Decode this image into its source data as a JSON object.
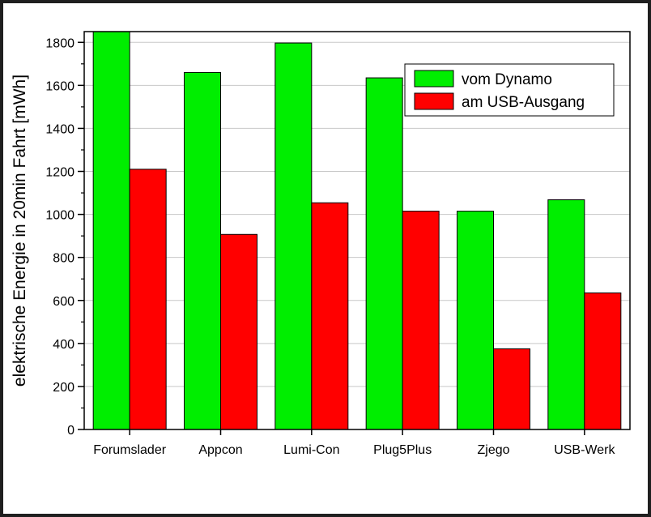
{
  "chart_data": {
    "type": "bar",
    "categories": [
      "Forumslader",
      "Appcon",
      "Lumi-Con",
      "Plug5Plus",
      "Zjego",
      "USB-Werk"
    ],
    "series": [
      {
        "name": "vom Dynamo",
        "color": "#00ee00",
        "values": [
          1850,
          1660,
          1797,
          1635,
          1015,
          1068
        ]
      },
      {
        "name": "am USB-Ausgang",
        "color": "#ff0000",
        "values": [
          1210,
          907,
          1054,
          1015,
          375,
          635
        ]
      }
    ],
    "title": "",
    "xlabel": "",
    "ylabel": "elektrische Energie in 20min Fahrt [mWh]",
    "ylim": [
      0,
      1850
    ],
    "yticks": [
      0,
      200,
      400,
      600,
      800,
      1000,
      1200,
      1400,
      1600,
      1800
    ],
    "grid": true,
    "legend": "top-right"
  }
}
